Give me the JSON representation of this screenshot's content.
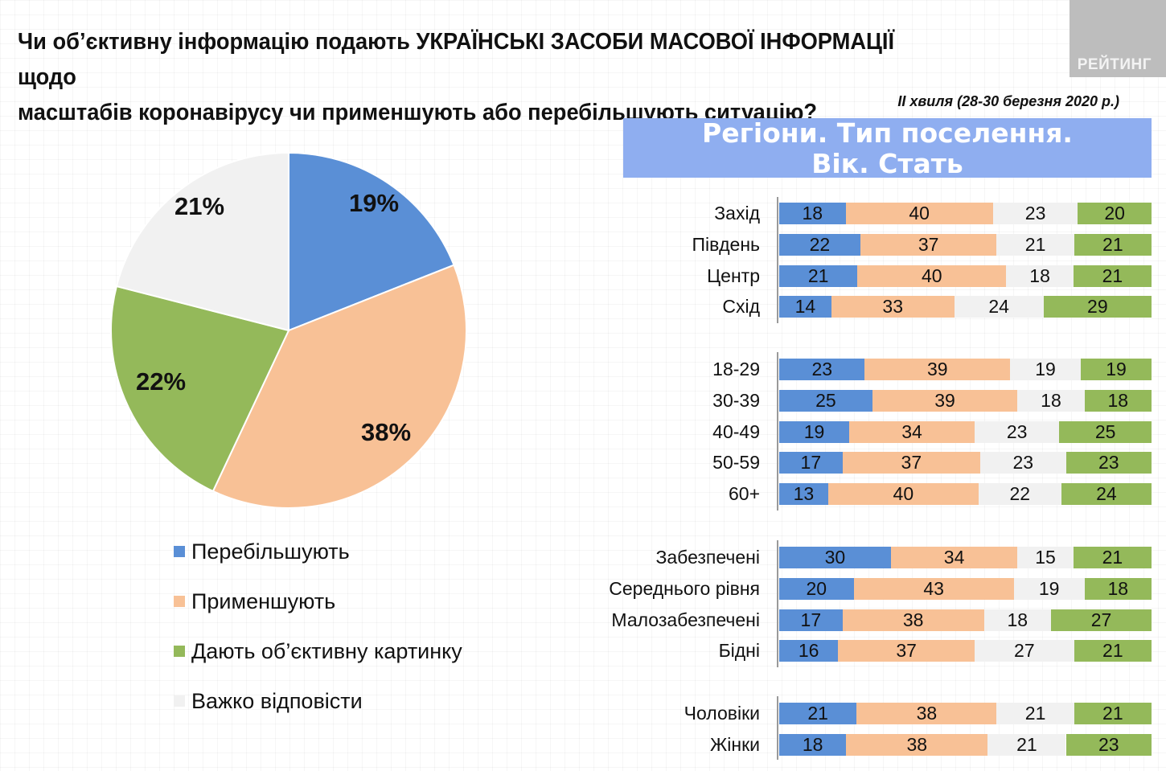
{
  "title": {
    "line1": "Чи об’єктивну інформацію подають УКРАЇНСЬКІ ЗАСОБИ МАСОВОЇ ІНФОРМАЦІЇ щодо",
    "line2": "масштабів коронавірусу чи применшують або перебільшують ситуацію?"
  },
  "logo": "РЕЙТИНГ",
  "wave": "ІІ хвиля (28-30 березня 2020 р.)",
  "banner": {
    "line1": "Регіони. Тип поселення.",
    "line2": "Вік. Стать"
  },
  "colors": {
    "blue": "#5a8fd6",
    "orange": "#f8c196",
    "gray": "#f1f1f1",
    "green": "#94b95a"
  },
  "chart_data": [
    {
      "type": "pie",
      "slices": [
        {
          "name": "Перебільшують",
          "value": 19,
          "label": "19%"
        },
        {
          "name": "Применшують",
          "value": 38,
          "label": "38%"
        },
        {
          "name": "Дають об’єктивну картинку",
          "value": 22,
          "label": "22%"
        },
        {
          "name": "Важко відповісти",
          "value": 21,
          "label": "21%"
        }
      ]
    },
    {
      "type": "bar",
      "orientation": "horizontal",
      "stacked": true,
      "series": [
        {
          "name": "Перебільшують"
        },
        {
          "name": "Применшують"
        },
        {
          "name": "Важко відповісти"
        },
        {
          "name": "Дають об’єктивну картинку"
        }
      ],
      "groups": [
        {
          "rows": [
            {
              "label": "Захід",
              "values": [
                18,
                40,
                23,
                20
              ]
            },
            {
              "label": "Південь",
              "values": [
                22,
                37,
                21,
                21
              ]
            },
            {
              "label": "Центр",
              "values": [
                21,
                40,
                18,
                21
              ]
            },
            {
              "label": "Схід",
              "values": [
                14,
                33,
                24,
                29
              ]
            }
          ]
        },
        {
          "rows": [
            {
              "label": "18-29",
              "values": [
                23,
                39,
                19,
                19
              ]
            },
            {
              "label": "30-39",
              "values": [
                25,
                39,
                18,
                18
              ]
            },
            {
              "label": "40-49",
              "values": [
                19,
                34,
                23,
                25
              ]
            },
            {
              "label": "50-59",
              "values": [
                17,
                37,
                23,
                23
              ]
            },
            {
              "label": "60+",
              "values": [
                13,
                40,
                22,
                24
              ]
            }
          ]
        },
        {
          "rows": [
            {
              "label": "Забезпечені",
              "values": [
                30,
                34,
                15,
                21
              ]
            },
            {
              "label": "Середнього рівня",
              "values": [
                20,
                43,
                19,
                18
              ]
            },
            {
              "label": "Малозабезпечені",
              "values": [
                17,
                38,
                18,
                27
              ]
            },
            {
              "label": "Бідні",
              "values": [
                16,
                37,
                27,
                21
              ]
            }
          ]
        },
        {
          "rows": [
            {
              "label": "Чоловіки",
              "values": [
                21,
                38,
                21,
                21
              ]
            },
            {
              "label": "Жінки",
              "values": [
                18,
                38,
                21,
                23
              ]
            }
          ]
        }
      ]
    }
  ]
}
